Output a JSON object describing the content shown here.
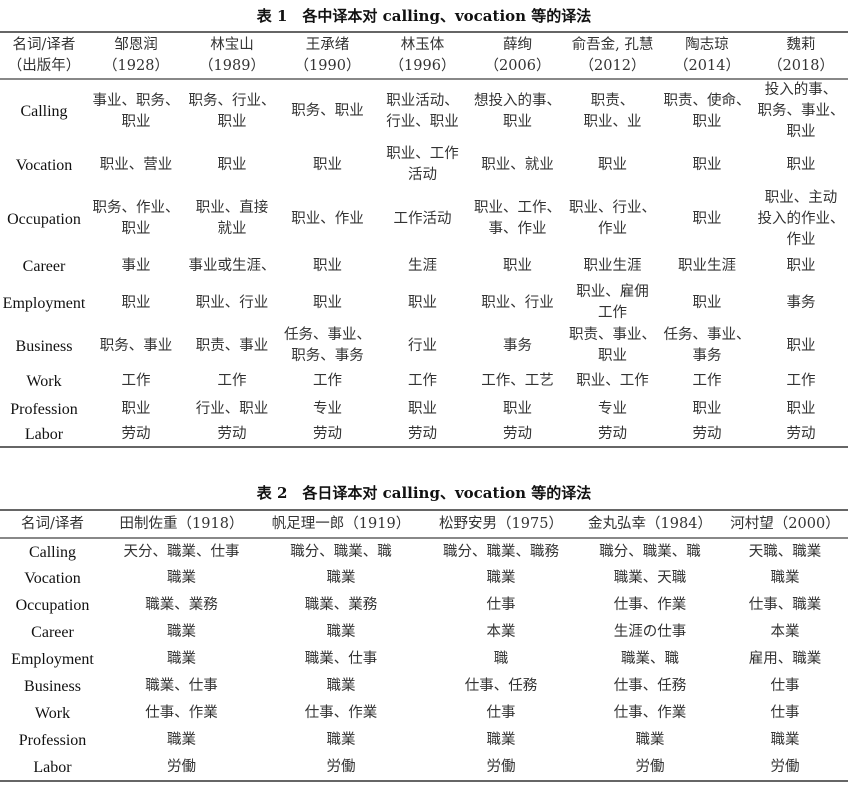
{
  "table1": {
    "title": "表 1　各中译本对 calling、vocation 等的译法",
    "headers": [
      "名词/译者\n（出版年）",
      "邹恩润\n（1928）",
      "林宝山\n（1989）",
      "王承绪\n（1990）",
      "林玉体\n（1996）",
      "薛绚\n（2006）",
      "俞吾金, 孔慧\n（2012）",
      "陶志琼\n（2014）",
      "魏莉\n（2018）"
    ],
    "rows": [
      [
        "Calling",
        "事业、职务、\n职业",
        "职务、行业、\n职业",
        "职务、职业",
        "职业活动、\n行业、职业",
        "想投入的事、\n职业",
        "职责、\n职业、业",
        "职责、使命、\n职业",
        "投入的事、\n职务、事业、\n职业"
      ],
      [
        "Vocation",
        "职业、营业",
        "职业",
        "职业",
        "职业、工作\n活动",
        "职业、就业",
        "职业",
        "职业",
        "职业"
      ],
      [
        "Occupation",
        "职务、作业、\n职业",
        "职业、直接\n就业",
        "职业、作业",
        "工作活动",
        "职业、工作、\n事、作业",
        "职业、行业、\n作业",
        "职业",
        "职业、主动\n投入的作业、\n作业"
      ],
      [
        "Career",
        "事业",
        "事业或生涯、",
        "职业",
        "生涯",
        "职业",
        "职业生涯",
        "职业生涯",
        "职业"
      ],
      [
        "Employment",
        "职业",
        "职业、行业",
        "职业",
        "职业",
        "职业、行业",
        "职业、雇佣\n工作",
        "职业",
        "事务"
      ],
      [
        "Business",
        "职务、事业",
        "职责、事业",
        "任务、事业、\n职务、事务",
        "行业",
        "事务",
        "职责、事业、\n职业",
        "任务、事业、\n事务",
        "职业"
      ],
      [
        "Work",
        "工作",
        "工作",
        "工作",
        "工作",
        "工作、工艺",
        "职业、工作",
        "工作",
        "工作"
      ],
      [
        "Profession",
        "职业",
        "行业、职业",
        "专业",
        "职业",
        "职业",
        "专业",
        "职业",
        "职业"
      ],
      [
        "Labor",
        "劳动",
        "劳动",
        "劳动",
        "劳动",
        "劳动",
        "劳动",
        "劳动",
        "劳动"
      ]
    ]
  },
  "table2": {
    "title": "表 2　各日译本对 calling、vocation 等的译法",
    "headers": [
      "名词/译者",
      "田制佐重（1918）",
      "帆足理一郎（1919）",
      "松野安男（1975）",
      "金丸弘幸（1984）",
      "河村望（2000）"
    ],
    "rows": [
      [
        "Calling",
        "天分、職業、仕事",
        "職分、職業、職",
        "職分、職業、職務",
        "職分、職業、職",
        "天職、職業"
      ],
      [
        "Vocation",
        "職業",
        "職業",
        "職業",
        "職業、天職",
        "職業"
      ],
      [
        "Occupation",
        "職業、業務",
        "職業、業務",
        "仕事",
        "仕事、作業",
        "仕事、職業"
      ],
      [
        "Career",
        "職業",
        "職業",
        "本業",
        "生涯の仕事",
        "本業"
      ],
      [
        "Employment",
        "職業",
        "職業、仕事",
        "職",
        "職業、職",
        "雇用、職業"
      ],
      [
        "Business",
        "職業、仕事",
        "職業",
        "仕事、任務",
        "仕事、任務",
        "仕事"
      ],
      [
        "Work",
        "仕事、作業",
        "仕事、作業",
        "仕事",
        "仕事、作業",
        "仕事"
      ],
      [
        "Profession",
        "職業",
        "職業",
        "職業",
        "職業",
        "職業"
      ],
      [
        "Labor",
        "労働",
        "労働",
        "労働",
        "労働",
        "労働"
      ]
    ]
  }
}
